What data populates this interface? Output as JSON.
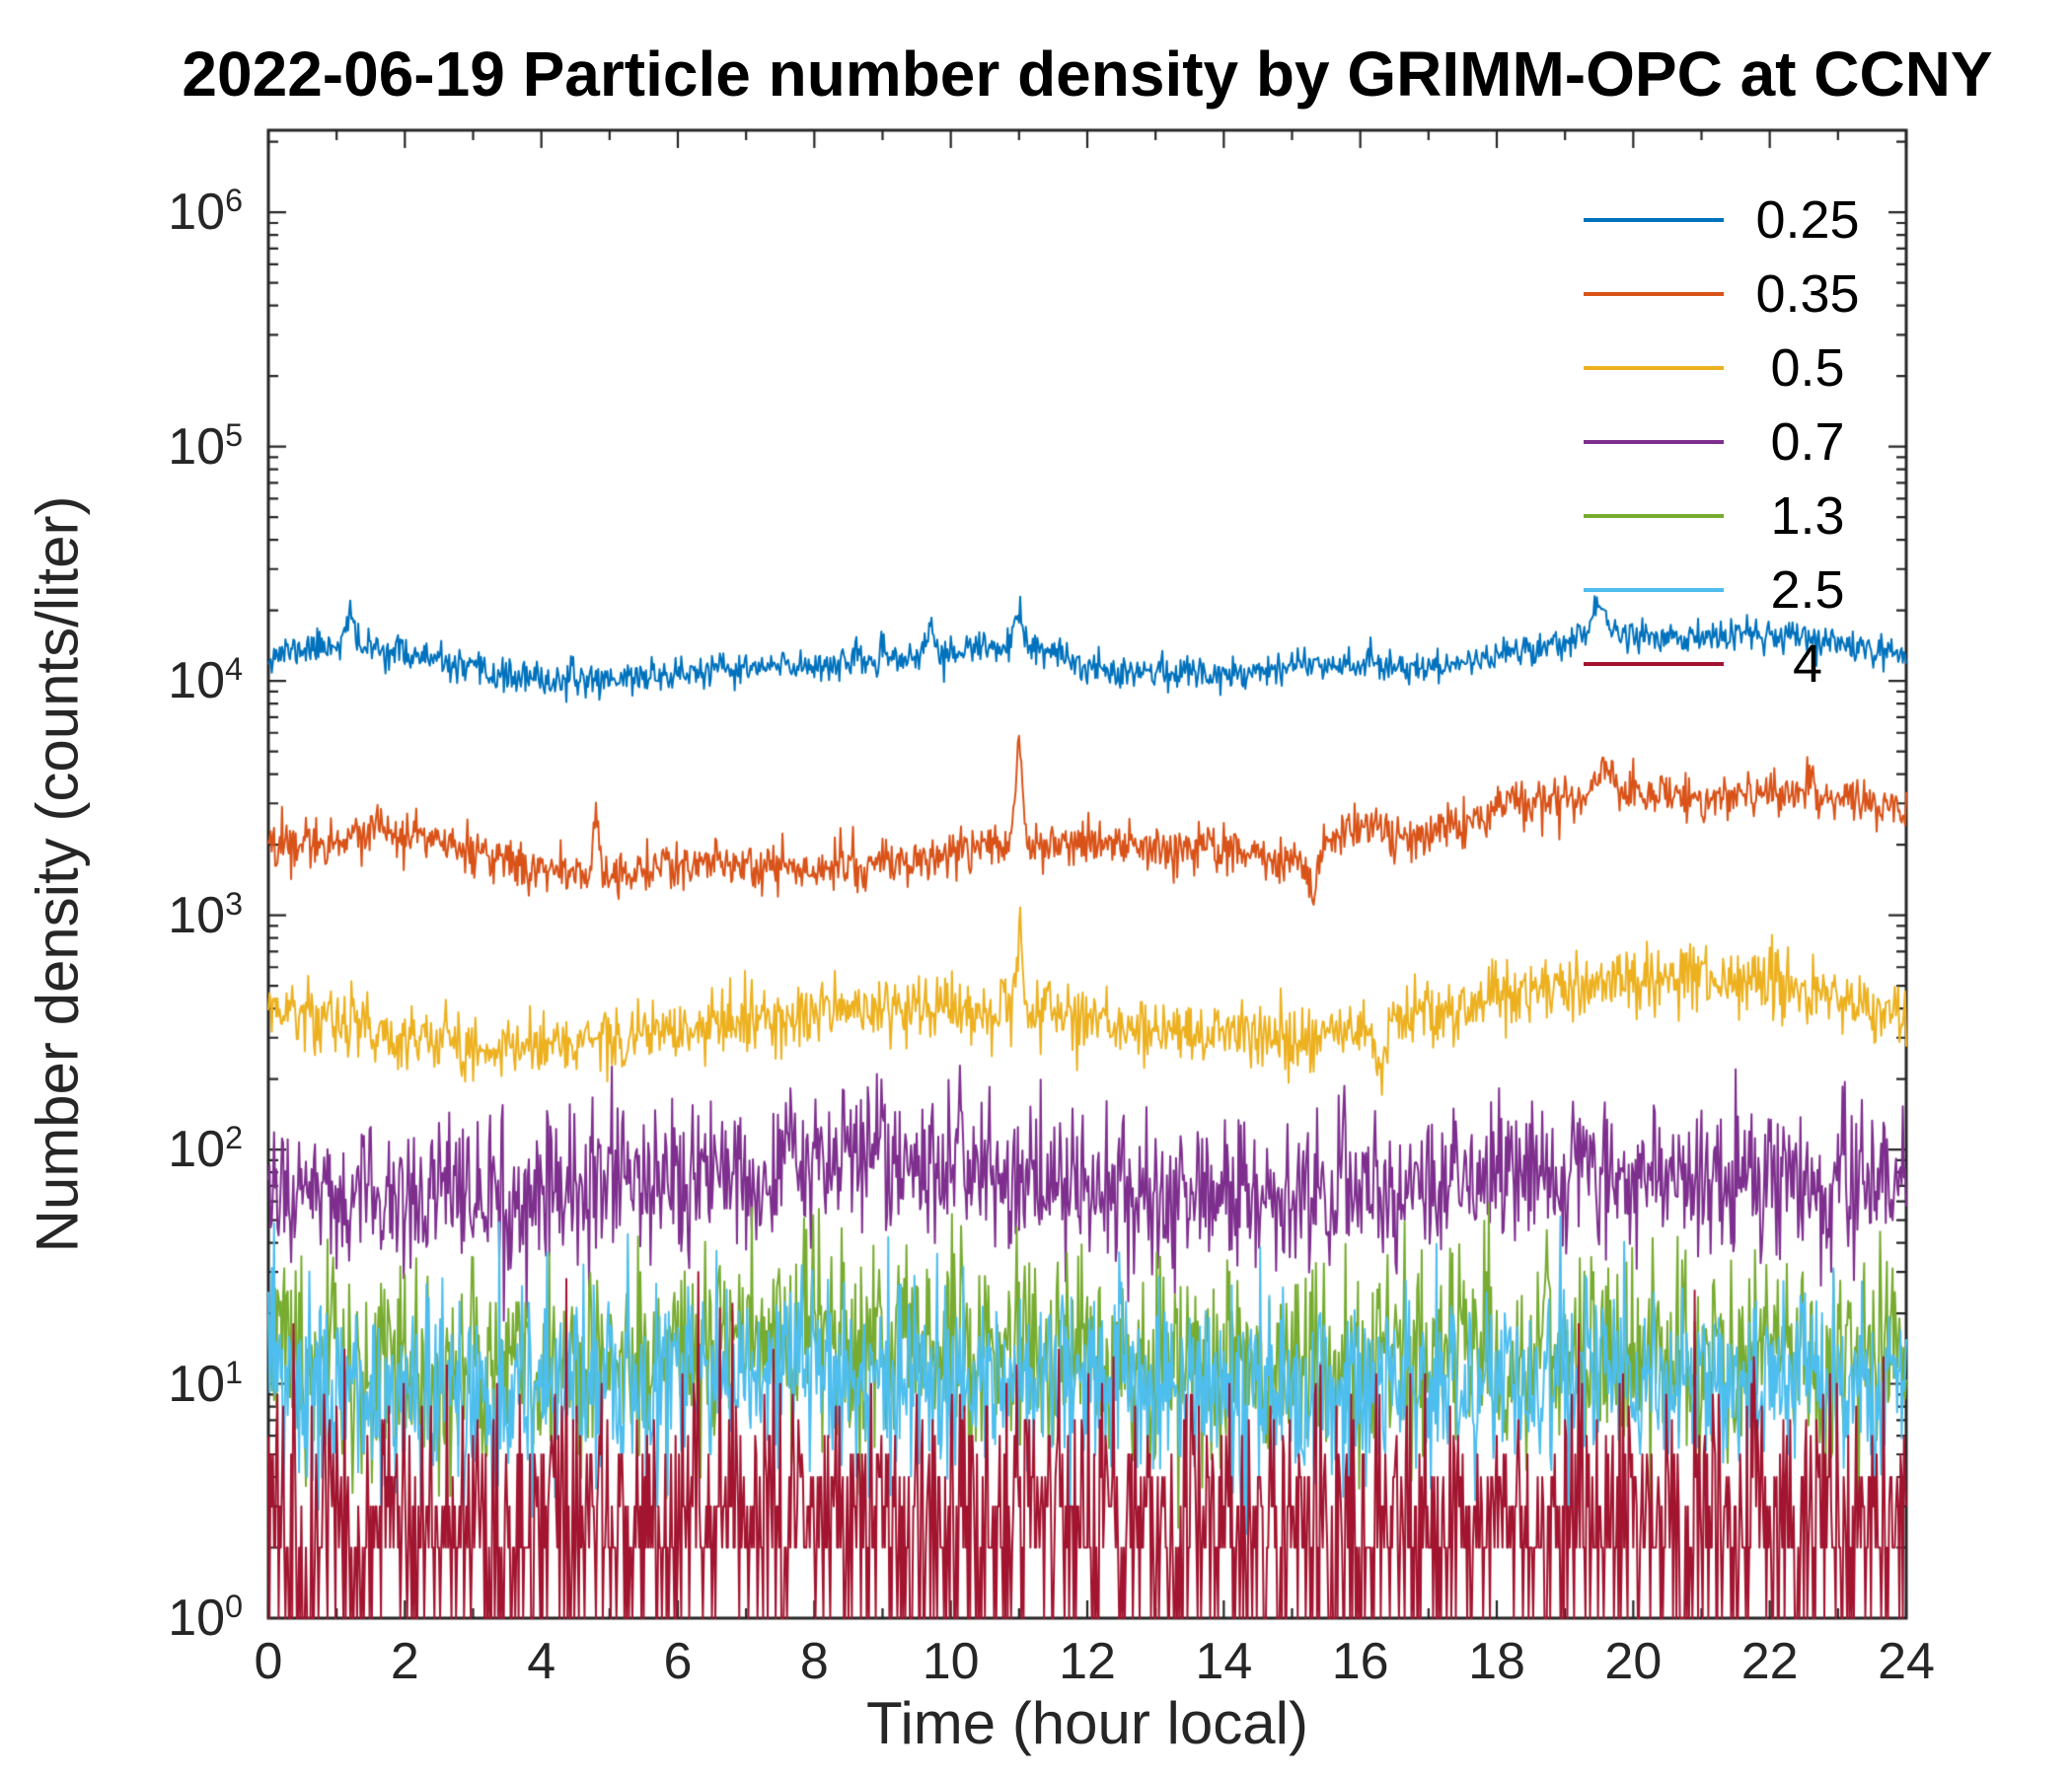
{
  "chart_data": {
    "type": "line",
    "title": "2022-06-19 Particle number density by GRIMM-OPC at CCNY",
    "xlabel": "Time (hour local)",
    "ylabel": "Number density (counts/liter)",
    "x_range": [
      0,
      24
    ],
    "x_major_ticks": [
      0,
      2,
      4,
      6,
      8,
      10,
      12,
      14,
      16,
      18,
      20,
      22,
      24
    ],
    "x_minor_ticks": [
      1,
      3,
      5,
      7,
      9,
      11,
      13,
      15,
      17,
      19,
      21,
      23
    ],
    "y_scale": "log10",
    "y_tick_exponents": [
      0,
      1,
      2,
      3,
      4,
      5,
      6
    ],
    "y_max_exponent": 6.35,
    "ylim": [
      1,
      2200000
    ],
    "grid": false,
    "legend_position": "top-right-inside",
    "axis_color": "#262626",
    "points_per_hour": 60,
    "series": [
      {
        "name": "0.25",
        "color": "#0072BD",
        "seed": 11,
        "noise_sd": 0.035,
        "quantize": false,
        "anchors_log10": [
          4.11,
          4.16,
          4.12,
          4.04,
          4.0,
          4.01,
          4.03,
          4.05,
          4.07,
          4.09,
          4.12,
          4.16,
          4.06,
          4.04,
          4.03,
          4.07,
          4.08,
          4.05,
          4.11,
          4.17,
          4.2,
          4.18,
          4.2,
          4.16,
          4.12
        ],
        "spikes": [
          {
            "hour": 1.2,
            "amp": 0.12,
            "width": 0.06
          },
          {
            "hour": 9.7,
            "amp": 0.15,
            "width": 0.04
          },
          {
            "hour": 11.0,
            "amp": 0.1,
            "width": 0.06
          },
          {
            "hour": 19.5,
            "amp": 0.15,
            "width": 0.1
          }
        ]
      },
      {
        "name": "0.35",
        "color": "#D95319",
        "seed": 22,
        "noise_sd": 0.05,
        "quantize": false,
        "anchors_log10": [
          3.3,
          3.33,
          3.36,
          3.26,
          3.19,
          3.18,
          3.21,
          3.21,
          3.2,
          3.22,
          3.26,
          3.33,
          3.3,
          3.28,
          3.28,
          3.22,
          3.38,
          3.33,
          3.46,
          3.5,
          3.52,
          3.5,
          3.52,
          3.5,
          3.45
        ],
        "spikes": [
          {
            "hour": 4.8,
            "amp": 0.25,
            "width": 0.04
          },
          {
            "hour": 11.0,
            "amp": 0.38,
            "width": 0.05
          },
          {
            "hour": 15.3,
            "amp": -0.18,
            "width": 0.06
          },
          {
            "hour": 19.6,
            "amp": 0.15,
            "width": 0.1
          },
          {
            "hour": 22.6,
            "amp": 0.12,
            "width": 0.05
          }
        ]
      },
      {
        "name": "0.5",
        "color": "#EDB120",
        "seed": 33,
        "noise_sd": 0.07,
        "quantize": false,
        "anchors_log10": [
          2.6,
          2.55,
          2.48,
          2.42,
          2.46,
          2.47,
          2.5,
          2.54,
          2.58,
          2.6,
          2.6,
          2.62,
          2.55,
          2.5,
          2.48,
          2.46,
          2.52,
          2.58,
          2.66,
          2.7,
          2.72,
          2.75,
          2.73,
          2.65,
          2.58
        ],
        "spikes": [
          {
            "hour": 11.0,
            "amp": 0.3,
            "width": 0.04
          },
          {
            "hour": 16.3,
            "amp": -0.22,
            "width": 0.06
          }
        ]
      },
      {
        "name": "0.7",
        "color": "#7E2F8E",
        "seed": 44,
        "noise_sd": 0.16,
        "quantize": false,
        "anchors_log10": [
          1.82,
          1.8,
          1.78,
          1.76,
          1.8,
          1.83,
          1.86,
          1.92,
          1.95,
          1.97,
          1.93,
          1.88,
          1.82,
          1.8,
          1.82,
          1.78,
          1.82,
          1.85,
          1.86,
          1.9,
          1.86,
          1.86,
          1.9,
          1.86,
          1.82
        ],
        "spikes": []
      },
      {
        "name": "1.3",
        "color": "#77AC30",
        "seed": 55,
        "noise_sd": 0.22,
        "quantize": false,
        "anchors_log10": [
          1.1,
          1.08,
          1.05,
          1.05,
          1.08,
          1.1,
          1.13,
          1.18,
          1.2,
          1.18,
          1.15,
          1.12,
          1.1,
          1.08,
          1.1,
          1.06,
          1.1,
          1.1,
          1.12,
          1.14,
          1.12,
          1.1,
          1.14,
          1.1,
          1.1
        ],
        "spikes": []
      },
      {
        "name": "2.5",
        "color": "#4DBEEE",
        "seed": 66,
        "noise_sd": 0.2,
        "quantize": false,
        "anchors_log10": [
          1.0,
          0.98,
          0.95,
          0.95,
          0.98,
          1.0,
          1.04,
          1.08,
          1.08,
          1.05,
          1.02,
          1.0,
          1.0,
          0.96,
          1.0,
          0.96,
          1.0,
          1.0,
          1.02,
          1.05,
          1.02,
          1.0,
          1.0,
          0.96,
          1.0
        ],
        "spikes": []
      },
      {
        "name": "4",
        "color": "#A2142F",
        "seed": 77,
        "noise_sd": 0.3,
        "quantize": true,
        "anchors_log10": [
          0.4,
          0.38,
          0.36,
          0.36,
          0.38,
          0.4,
          0.42,
          0.45,
          0.45,
          0.42,
          0.4,
          0.4,
          0.4,
          0.38,
          0.4,
          0.38,
          0.4,
          0.4,
          0.42,
          0.44,
          0.42,
          0.4,
          0.42,
          0.4,
          0.4
        ],
        "spikes": []
      }
    ]
  }
}
